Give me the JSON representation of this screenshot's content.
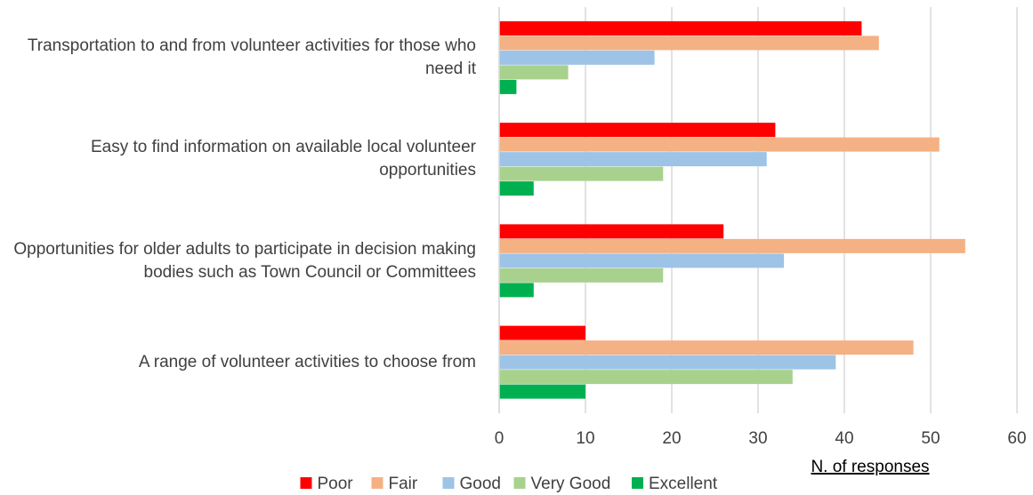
{
  "chart_data": {
    "type": "hbar",
    "categories": [
      "Transportation to and from volunteer activities for those who need it",
      "Easy to find information on available local volunteer opportunities",
      "Opportunities for older adults to participate in decision making bodies such as Town Council or Committees",
      "A range of volunteer activities to choose from"
    ],
    "series": [
      {
        "name": "Poor",
        "color": "#ff0000",
        "values": [
          42,
          32,
          26,
          10
        ]
      },
      {
        "name": "Fair",
        "color": "#f4b183",
        "values": [
          44,
          51,
          54,
          48
        ]
      },
      {
        "name": "Good",
        "color": "#9dc3e6",
        "values": [
          18,
          31,
          33,
          39
        ]
      },
      {
        "name": "Very Good",
        "color": "#a9d18e",
        "values": [
          8,
          19,
          19,
          34
        ]
      },
      {
        "name": "Excellent",
        "color": "#00b050",
        "values": [
          2,
          4,
          4,
          10
        ]
      }
    ],
    "xlabel": "N. of responses",
    "xlim": [
      0,
      60
    ],
    "xticks": [
      0,
      10,
      20,
      30,
      40,
      50,
      60
    ],
    "grid": true,
    "legend": "bottom"
  }
}
